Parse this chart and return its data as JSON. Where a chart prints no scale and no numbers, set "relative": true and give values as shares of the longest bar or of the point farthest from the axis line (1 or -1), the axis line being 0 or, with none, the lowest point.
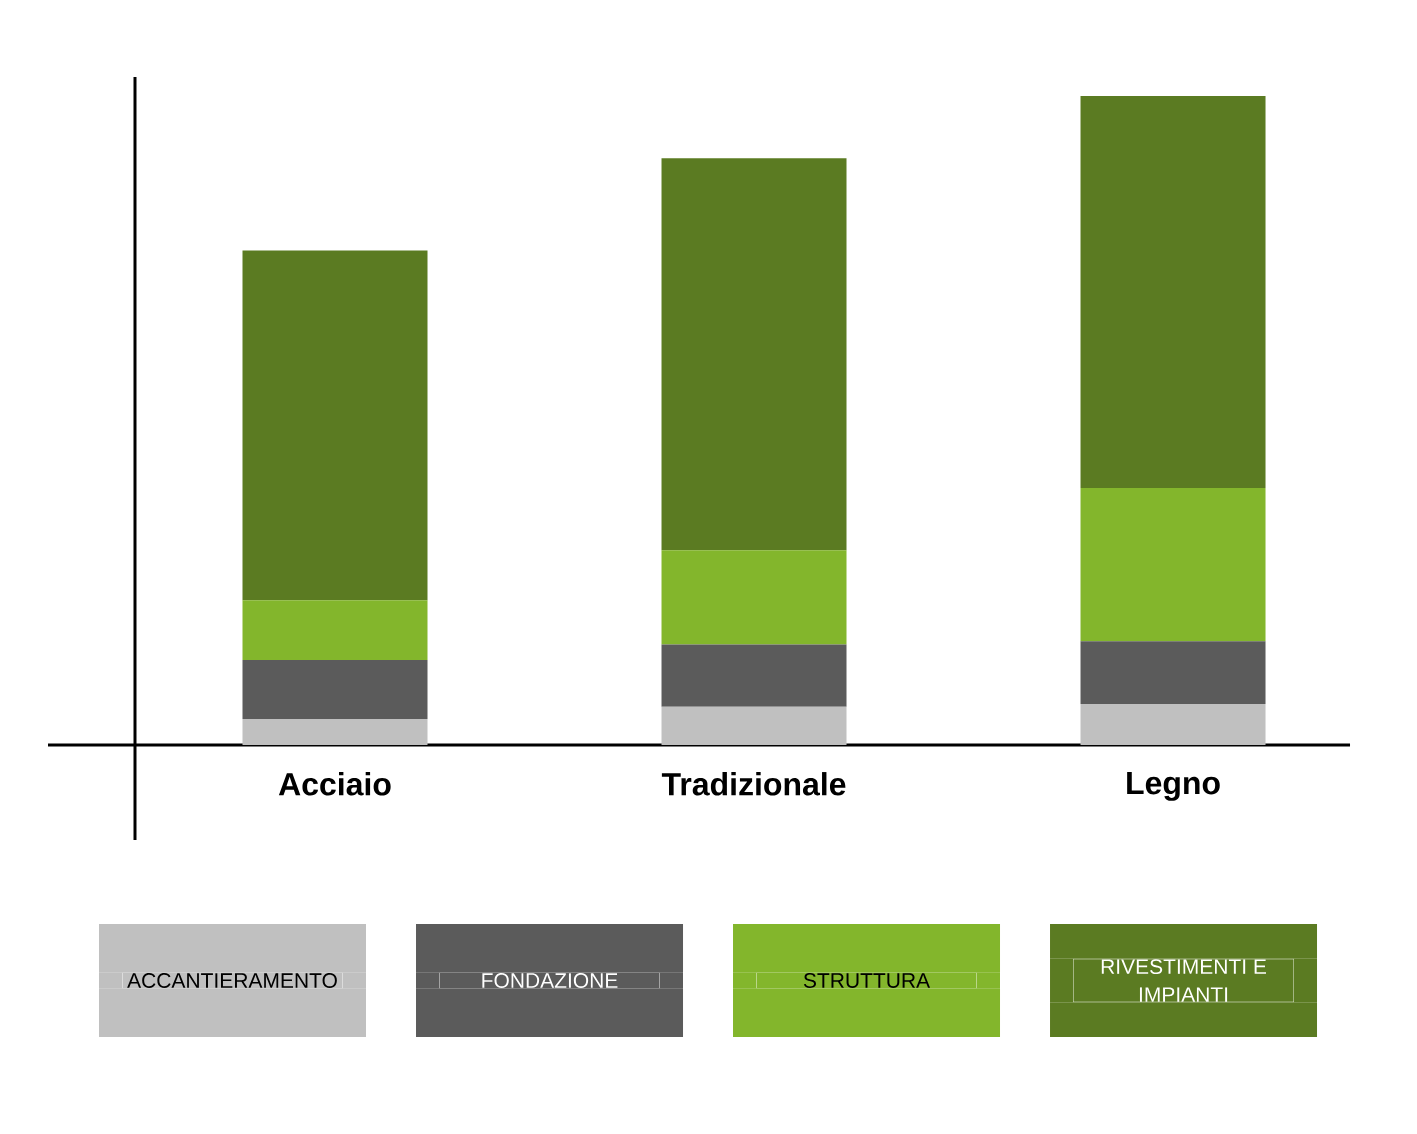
{
  "chart_data": {
    "type": "bar",
    "stacked": true,
    "relative": true,
    "legend": "bottom",
    "categories": [
      "Acciaio",
      "Tradizionale",
      "Legno"
    ],
    "series": [
      {
        "name": "ACCANTIERAMENTO",
        "color": "#c0c0c0",
        "values": [
          0.04,
          0.059,
          0.063
        ]
      },
      {
        "name": "FONDAZIONE",
        "color": "#5b5b5b",
        "values": [
          0.091,
          0.096,
          0.097
        ]
      },
      {
        "name": "STRUTTURA",
        "color": "#83b62c",
        "values": [
          0.092,
          0.145,
          0.236
        ]
      },
      {
        "name": "RIVESTIMENTI E IMPIANTI",
        "color": "#5b7b22",
        "values": [
          0.539,
          0.604,
          0.604
        ]
      }
    ]
  }
}
